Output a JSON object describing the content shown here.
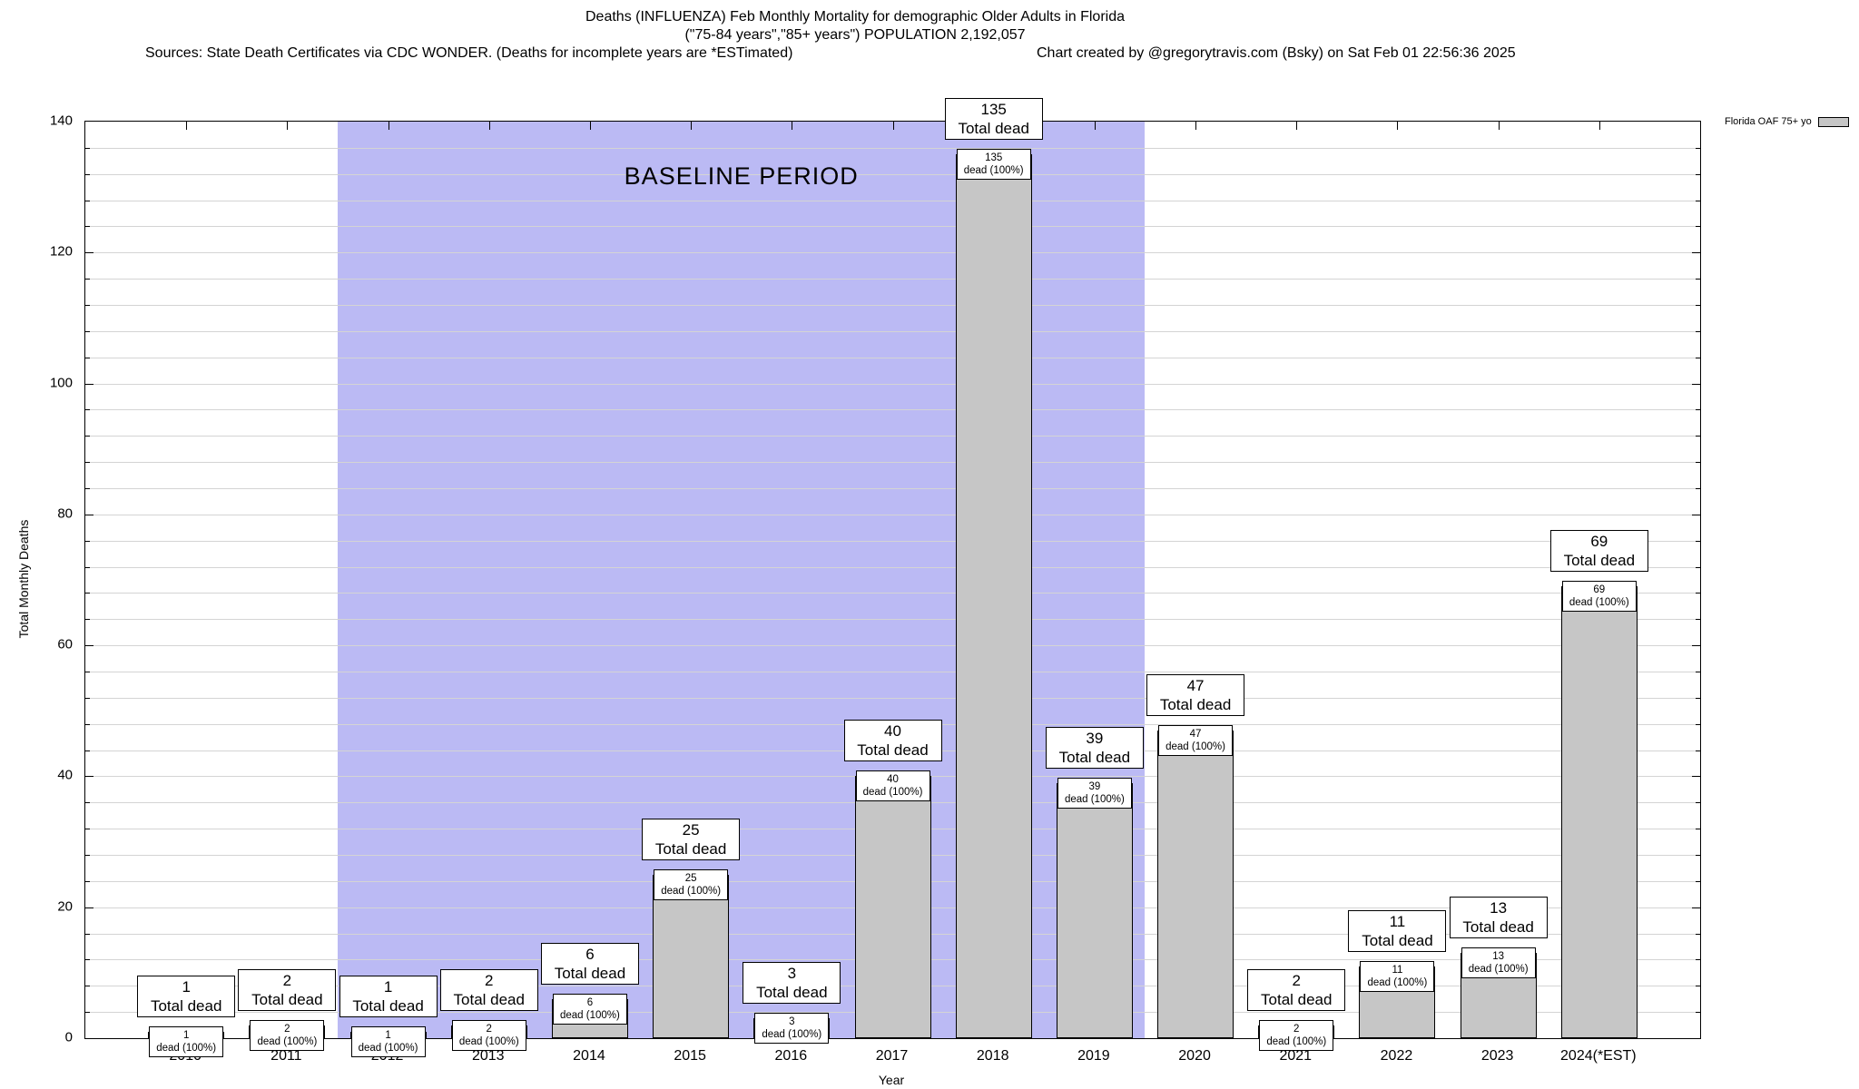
{
  "header": {
    "title_line1": "Deaths (INFLUENZA) Feb Monthly Mortality for demographic Older Adults in Florida",
    "title_line2": "(\"75-84 years\",\"85+ years\") POPULATION 2,192,057",
    "source_left": "Sources: State Death Certificates via CDC WONDER. (Deaths for incomplete years are *ESTimated)",
    "source_right": "Chart created by @gregorytravis.com (Bsky) on Sat Feb 01 22:56:36 2025"
  },
  "legend": {
    "label": "Florida OAF 75+ yo"
  },
  "chart_data": {
    "type": "bar",
    "title": "Deaths (INFLUENZA) Feb Monthly Mortality for demographic Older Adults in Florida",
    "subtitle": "(\"75-84 years\",\"85+ years\") POPULATION 2,192,057",
    "xlabel": "Year",
    "ylabel": "Total Monthly Deaths",
    "ylim": [
      0,
      140
    ],
    "y_major_ticks": [
      0,
      20,
      40,
      60,
      80,
      100,
      120,
      140
    ],
    "y_minor_step": 4,
    "grid": true,
    "legend_position": "top-right",
    "categories": [
      "2010",
      "2011",
      "2012",
      "2013",
      "2014",
      "2015",
      "2016",
      "2017",
      "2018",
      "2019",
      "2020",
      "2021",
      "2022",
      "2023",
      "2024(*EST)"
    ],
    "values": [
      1,
      2,
      1,
      2,
      6,
      25,
      3,
      40,
      135,
      39,
      47,
      2,
      11,
      13,
      69
    ],
    "series_name": "Florida OAF 75+ yo",
    "bar_top_label_suffix": "Total dead",
    "bar_inner_label_suffix": "dead (100%)",
    "baseline": {
      "label": "BASELINE PERIOD",
      "from_category": "2012",
      "to_category": "2019"
    },
    "colors": {
      "bar_fill": "#c6c6c6",
      "bar_border": "#000000",
      "baseline_fill": "#bbbaf4",
      "grid": "#d4d4d4",
      "background": "#ffffff"
    }
  }
}
